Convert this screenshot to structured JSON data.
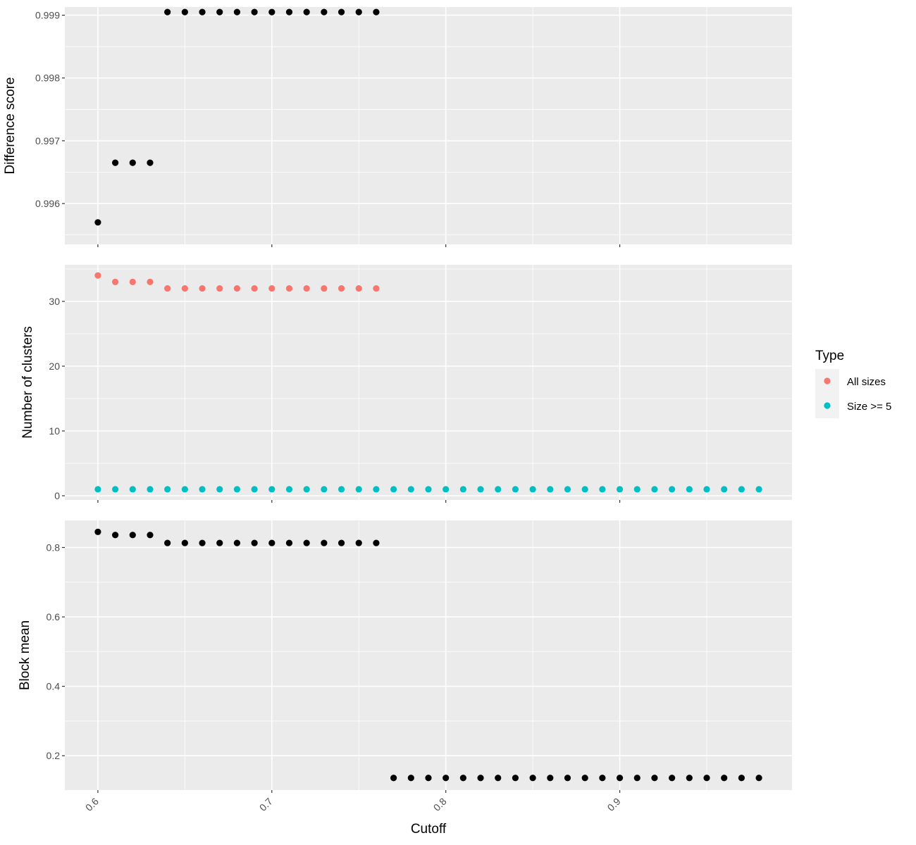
{
  "chart_data": [
    {
      "type": "scatter",
      "ylabel": "Difference score",
      "ylim": [
        0.99535,
        0.99913
      ],
      "yticks": [
        0.996,
        0.997,
        0.998,
        0.999
      ],
      "ytick_labels": [
        "0.996",
        "0.997",
        "0.998",
        "0.999"
      ],
      "series": [
        {
          "color": "#000000",
          "x": [
            0.6,
            0.61,
            0.62,
            0.63,
            0.64,
            0.65,
            0.66,
            0.67,
            0.68,
            0.69,
            0.7,
            0.71,
            0.72,
            0.73,
            0.74,
            0.75,
            0.76
          ],
          "y": [
            0.9957,
            0.99665,
            0.99665,
            0.99665,
            0.99905,
            0.99905,
            0.99905,
            0.99905,
            0.99905,
            0.99905,
            0.99905,
            0.99905,
            0.99905,
            0.99905,
            0.99905,
            0.99905,
            0.99905
          ]
        }
      ]
    },
    {
      "type": "scatter",
      "ylabel": "Number of clusters",
      "ylim": [
        -0.65,
        35.65
      ],
      "yticks": [
        0,
        10,
        20,
        30
      ],
      "ytick_labels": [
        "0",
        "10",
        "20",
        "30"
      ],
      "series": [
        {
          "name": "All sizes",
          "color": "#F8766D",
          "x": [
            0.6,
            0.61,
            0.62,
            0.63,
            0.64,
            0.65,
            0.66,
            0.67,
            0.68,
            0.69,
            0.7,
            0.71,
            0.72,
            0.73,
            0.74,
            0.75,
            0.76
          ],
          "y": [
            34,
            33,
            33,
            33,
            32,
            32,
            32,
            32,
            32,
            32,
            32,
            32,
            32,
            32,
            32,
            32,
            32
          ]
        },
        {
          "name": "Size >= 5",
          "color": "#00BFC4",
          "x": [
            0.6,
            0.61,
            0.62,
            0.63,
            0.64,
            0.65,
            0.66,
            0.67,
            0.68,
            0.69,
            0.7,
            0.71,
            0.72,
            0.73,
            0.74,
            0.75,
            0.76,
            0.77,
            0.78,
            0.79,
            0.8,
            0.81,
            0.82,
            0.83,
            0.84,
            0.85,
            0.86,
            0.87,
            0.88,
            0.89,
            0.9,
            0.91,
            0.92,
            0.93,
            0.94,
            0.95,
            0.96,
            0.97,
            0.98
          ],
          "y": [
            1,
            1,
            1,
            1,
            1,
            1,
            1,
            1,
            1,
            1,
            1,
            1,
            1,
            1,
            1,
            1,
            1,
            1,
            1,
            1,
            1,
            1,
            1,
            1,
            1,
            1,
            1,
            1,
            1,
            1,
            1,
            1,
            1,
            1,
            1,
            1,
            1,
            1,
            1
          ]
        }
      ]
    },
    {
      "type": "scatter",
      "ylabel": "Block mean",
      "ylim": [
        0.101,
        0.8781
      ],
      "yticks": [
        0.2,
        0.4,
        0.6,
        0.8
      ],
      "ytick_labels": [
        "0.2",
        "0.4",
        "0.6",
        "0.8"
      ],
      "series": [
        {
          "color": "#000000",
          "x": [
            0.6,
            0.61,
            0.62,
            0.63,
            0.64,
            0.65,
            0.66,
            0.67,
            0.68,
            0.69,
            0.7,
            0.71,
            0.72,
            0.73,
            0.74,
            0.75,
            0.76,
            0.77,
            0.78,
            0.79,
            0.8,
            0.81,
            0.82,
            0.83,
            0.84,
            0.85,
            0.86,
            0.87,
            0.88,
            0.89,
            0.9,
            0.91,
            0.92,
            0.93,
            0.94,
            0.95,
            0.96,
            0.97,
            0.98
          ],
          "y": [
            0.845,
            0.836,
            0.836,
            0.836,
            0.813,
            0.813,
            0.813,
            0.813,
            0.813,
            0.813,
            0.813,
            0.813,
            0.813,
            0.813,
            0.813,
            0.813,
            0.813,
            0.136,
            0.136,
            0.136,
            0.136,
            0.136,
            0.136,
            0.136,
            0.136,
            0.136,
            0.136,
            0.136,
            0.136,
            0.136,
            0.136,
            0.136,
            0.136,
            0.136,
            0.136,
            0.136,
            0.136,
            0.136,
            0.136
          ]
        }
      ]
    }
  ],
  "x_axis": {
    "label": "Cutoff",
    "xlim": [
      0.581,
      0.999
    ],
    "ticks": [
      0.6,
      0.7,
      0.8,
      0.9
    ],
    "tick_labels": [
      "0.6",
      "0.7",
      "0.8",
      "0.9"
    ]
  },
  "legend": {
    "title": "Type",
    "position": "right",
    "items": [
      {
        "label": "All sizes",
        "color": "#F8766D"
      },
      {
        "label": "Size >= 5",
        "color": "#00BFC4"
      }
    ]
  },
  "grid": true,
  "panel_background": "#EBEBEB",
  "grid_color": "#FFFFFF"
}
